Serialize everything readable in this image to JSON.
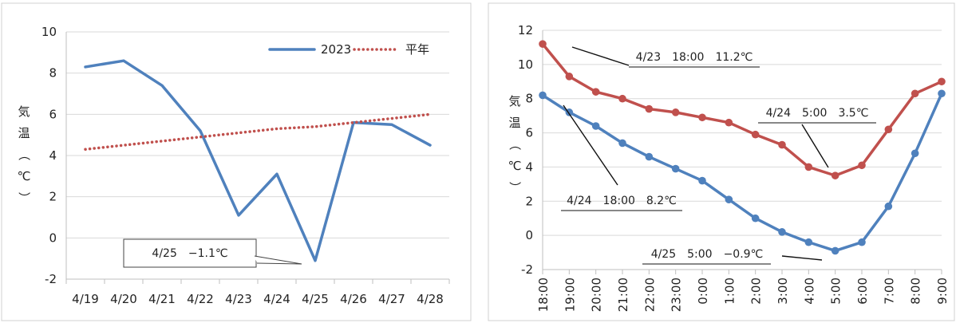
{
  "chart_data": [
    {
      "type": "line",
      "categories": [
        "4/19",
        "4/20",
        "4/21",
        "4/22",
        "4/23",
        "4/24",
        "4/25",
        "4/26",
        "4/27",
        "4/28"
      ],
      "series": [
        {
          "name": "2023",
          "values": [
            8.3,
            8.6,
            7.4,
            5.2,
            1.1,
            3.1,
            -1.1,
            5.6,
            5.5,
            4.5
          ],
          "color": "#4f81bd",
          "style": "solid"
        },
        {
          "name": "平年",
          "values": [
            4.3,
            4.5,
            4.7,
            4.9,
            5.1,
            5.3,
            5.4,
            5.6,
            5.8,
            6.0
          ],
          "color": "#c0504d",
          "style": "dotted"
        }
      ],
      "ylabel": "気温（℃）",
      "ylim": [
        -2,
        10
      ],
      "yticks": [
        -2,
        0,
        2,
        4,
        6,
        8,
        10
      ],
      "grid": true,
      "legend": "top-right",
      "annotations": [
        {
          "text": "4/25　−1.1℃",
          "x": "4/25",
          "y": -1.1
        }
      ]
    },
    {
      "type": "line",
      "categories": [
        "18:00",
        "19:00",
        "20:00",
        "21:00",
        "22:00",
        "23:00",
        "0:00",
        "1:00",
        "2:00",
        "3:00",
        "4:00",
        "5:00",
        "6:00",
        "7:00",
        "8:00",
        "9:00"
      ],
      "series": [
        {
          "values": [
            11.2,
            9.3,
            8.4,
            8.0,
            7.4,
            7.2,
            6.9,
            6.6,
            5.9,
            5.3,
            4.0,
            3.5,
            4.1,
            6.2,
            8.3,
            9.0
          ],
          "color": "#c0504d"
        },
        {
          "values": [
            8.2,
            7.2,
            6.4,
            5.4,
            4.6,
            3.9,
            3.2,
            2.1,
            1.0,
            0.2,
            -0.4,
            -0.9,
            -0.4,
            1.7,
            4.8,
            8.3
          ],
          "color": "#4f81bd"
        }
      ],
      "ylabel": "気温（℃）",
      "ylim": [
        -2,
        12
      ],
      "yticks": [
        -2,
        0,
        2,
        4,
        6,
        8,
        10,
        12
      ],
      "grid": true,
      "annotations": [
        {
          "text": "4/23　18:00　11.2℃",
          "series": 0,
          "index": 0
        },
        {
          "text": "4/24　5:00　3.5℃",
          "series": 0,
          "index": 11
        },
        {
          "text": "4/24　18:00　8.2℃",
          "series": 1,
          "index": 0
        },
        {
          "text": "4/25　5:00　−0.9℃",
          "series": 1,
          "index": 11
        }
      ]
    }
  ]
}
